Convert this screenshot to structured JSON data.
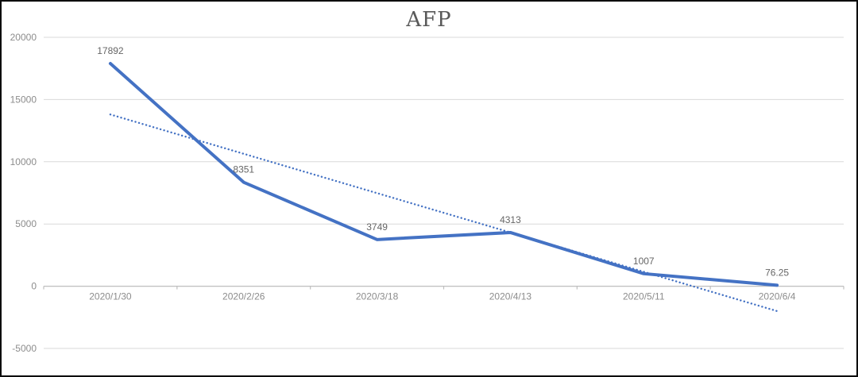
{
  "window": {
    "background": "#ffffff",
    "border_color": "#0a0a0a"
  },
  "chart_data": {
    "type": "line",
    "title": "AFP",
    "categories": [
      "2020/1/30",
      "2020/2/26",
      "2020/3/18",
      "2020/4/13",
      "2020/5/11",
      "2020/6/4"
    ],
    "series": [
      {
        "name": "AFP",
        "values": [
          17892,
          8351,
          3749,
          4313,
          1007,
          76.25
        ],
        "labels": [
          "17892",
          "8351",
          "3749",
          "4313",
          "1007",
          "76.25"
        ],
        "color": "#4472C4",
        "stroke_width": 4
      }
    ],
    "trendline": {
      "type": "linear",
      "style": "dotted",
      "color": "#4472C4",
      "start_value": 13800,
      "end_value": -2000
    },
    "y_axis": {
      "ticks": [
        20000,
        15000,
        10000,
        5000,
        0,
        -5000
      ],
      "tick_labels": [
        "20000",
        "15000",
        "10000",
        "5000",
        "0",
        "-5000"
      ],
      "min": -5000,
      "max": 20000
    },
    "grid": true,
    "legend": "none",
    "colors": {
      "gridline": "#D9D9D9",
      "axis_line": "#BFBFBF",
      "axis_tick_label": "#8C8C8C",
      "data_label": "#666666",
      "title": "#595959"
    }
  }
}
